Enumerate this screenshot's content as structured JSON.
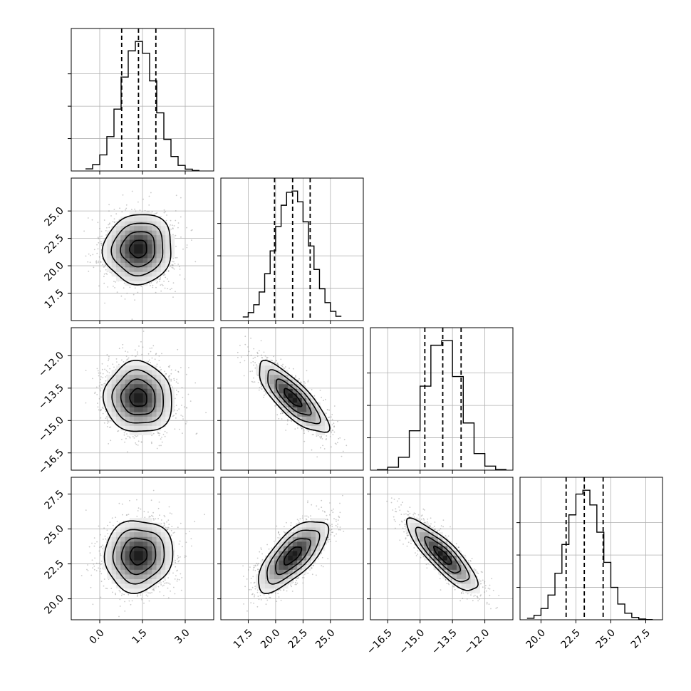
{
  "figure": {
    "type": "corner",
    "variables": [
      {
        "range": [
          -1.0,
          4.0
        ],
        "ticks": [
          0.0,
          1.5,
          3.0
        ],
        "tick_labels": [
          "0.0",
          "1.5",
          "3.0"
        ],
        "quantiles": [
          0.77,
          1.36,
          1.97
        ],
        "mean": 1.36,
        "sd": 0.6
      },
      {
        "range": [
          15.0,
          28.0
        ],
        "ticks": [
          17.5,
          20.0,
          22.5,
          25.0
        ],
        "tick_labels": [
          "17.5",
          "20.0",
          "22.5",
          "25.0"
        ],
        "quantiles": [
          19.9,
          21.55,
          23.15
        ],
        "mean": 21.55,
        "sd": 1.6
      },
      {
        "range": [
          -17.3,
          -10.7
        ],
        "ticks": [
          -16.5,
          -15.0,
          -13.5,
          -12.0
        ],
        "tick_labels": [
          "−16.5",
          "−15.0",
          "−13.5",
          "−12.0"
        ],
        "quantiles": [
          -14.78,
          -13.95,
          -13.1
        ],
        "mean": -13.95,
        "sd": 0.82
      },
      {
        "range": [
          18.5,
          28.7
        ],
        "ticks": [
          20.0,
          22.5,
          25.0,
          27.5
        ],
        "tick_labels": [
          "20.0",
          "22.5",
          "25.0",
          "27.5"
        ],
        "quantiles": [
          21.8,
          23.1,
          24.45
        ],
        "mean": 23.1,
        "sd": 1.28
      }
    ],
    "correlations": [
      [
        1.0,
        0.05,
        -0.05,
        0.05
      ],
      [
        0.05,
        1.0,
        -0.8,
        0.7
      ],
      [
        -0.05,
        -0.8,
        1.0,
        -0.85
      ],
      [
        0.05,
        0.7,
        -0.85,
        1.0
      ]
    ],
    "grid": true,
    "colors": {
      "line": "#000000",
      "points": "#888888",
      "grid": "#b0b0b0"
    }
  },
  "chart_data": {
    "type": "corner",
    "histograms": [
      {
        "bins_x": [
          -0.5,
          -0.25,
          0.0,
          0.25,
          0.5,
          0.75,
          1.0,
          1.25,
          1.5,
          1.75,
          2.0,
          2.25,
          2.5,
          2.75,
          3.0,
          3.25,
          3.5
        ],
        "quantiles": [
          0.77,
          1.36,
          1.97
        ]
      },
      {
        "bins_x": [
          17.0,
          17.5,
          18.0,
          18.5,
          19.0,
          19.5,
          20.0,
          20.5,
          21.0,
          21.5,
          22.0,
          22.5,
          23.0,
          23.5,
          24.0,
          24.5,
          25.0,
          25.5,
          26.0
        ],
        "quantiles": [
          19.9,
          21.55,
          23.15
        ]
      },
      {
        "bins_x": [
          -17.0,
          -16.5,
          -16.0,
          -15.5,
          -15.0,
          -14.5,
          -14.0,
          -13.5,
          -13.0,
          -12.5,
          -12.0,
          -11.5,
          -11.0
        ],
        "quantiles": [
          -14.78,
          -13.95,
          -13.1
        ]
      },
      {
        "bins_x": [
          19.0,
          19.5,
          20.0,
          20.5,
          21.0,
          21.5,
          22.0,
          22.5,
          23.0,
          23.5,
          24.0,
          24.5,
          25.0,
          25.5,
          26.0,
          26.5,
          27.0,
          27.5,
          28.0
        ],
        "quantiles": [
          21.8,
          23.1,
          24.45
        ]
      }
    ],
    "pairs": [
      {
        "row": 1,
        "col": 0,
        "correlation": 0.05
      },
      {
        "row": 2,
        "col": 0,
        "correlation": -0.05
      },
      {
        "row": 2,
        "col": 1,
        "correlation": -0.8
      },
      {
        "row": 3,
        "col": 0,
        "correlation": 0.05
      },
      {
        "row": 3,
        "col": 1,
        "correlation": 0.7
      },
      {
        "row": 3,
        "col": 2,
        "correlation": -0.85
      }
    ],
    "xlabel": "",
    "ylabel": "",
    "title": ""
  }
}
